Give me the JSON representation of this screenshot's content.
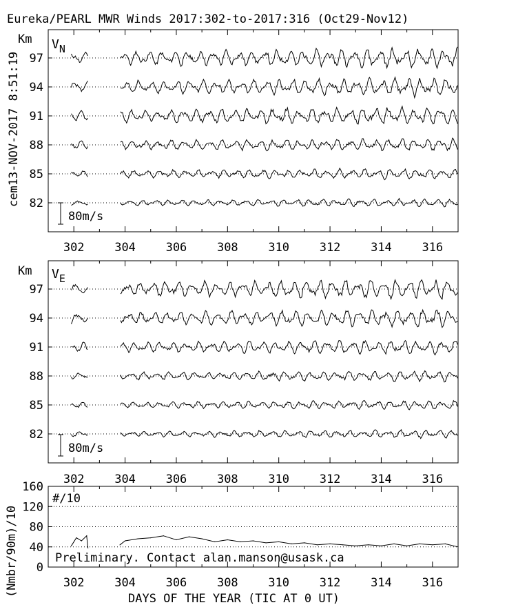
{
  "header": {
    "title": "Eureka/PEARL MWR Winds 2017:302-to-2017:316 (Oct29-Nov12)",
    "side_label": "cem13-NOV-2017  8:51:19"
  },
  "chart_data": [
    {
      "type": "line",
      "panel": "meridional",
      "component_label": "V",
      "component_subscript": "N",
      "unit_label": "Km",
      "scale_label": "80m/s",
      "xlim": [
        301,
        317
      ],
      "x_ticks": [
        "302",
        "304",
        "306",
        "308",
        "310",
        "312",
        "314",
        "316"
      ],
      "heights_km": [
        97,
        94,
        91,
        88,
        85,
        82
      ],
      "tick_labels": [
        "97",
        "94",
        "91",
        "88",
        "85",
        "82"
      ],
      "data_gap_days": [
        302.55,
        303.8
      ],
      "series_amplitude_ms": [
        55,
        50,
        50,
        35,
        30,
        22
      ],
      "grid": "dotted horizontal at each height",
      "legend": "none"
    },
    {
      "type": "line",
      "panel": "zonal",
      "component_label": "V",
      "component_subscript": "E",
      "unit_label": "Km",
      "scale_label": "80m/s",
      "xlim": [
        301,
        317
      ],
      "x_ticks": [
        "302",
        "304",
        "306",
        "308",
        "310",
        "312",
        "314",
        "316"
      ],
      "heights_km": [
        97,
        94,
        91,
        88,
        85,
        82
      ],
      "tick_labels": [
        "97",
        "94",
        "91",
        "88",
        "85",
        "82"
      ],
      "data_gap_days": [
        302.55,
        303.8
      ],
      "series_amplitude_ms": [
        55,
        50,
        40,
        30,
        25,
        22
      ],
      "grid": "dotted horizontal at each height",
      "legend": "none"
    },
    {
      "type": "line",
      "panel": "counts",
      "panel_label": "#/10",
      "ylabel": "(Nmbr/90m)/10",
      "xlabel": "DAYS OF THE YEAR (TIC AT 0 UT)",
      "xlim": [
        301,
        317
      ],
      "ylim": [
        0,
        160
      ],
      "x_ticks": [
        "302",
        "304",
        "306",
        "308",
        "310",
        "312",
        "314",
        "316"
      ],
      "y_ticks": [
        "0",
        "40",
        "80",
        "120",
        "160"
      ],
      "series": [
        {
          "x": [
            301.9,
            302.1,
            302.3,
            302.5,
            302.55,
            303.8,
            304.0,
            304.5,
            305.0,
            305.5,
            306.0,
            306.5,
            307.0,
            307.5,
            308.0,
            308.5,
            309.0,
            309.5,
            310.0,
            310.5,
            311.0,
            311.5,
            312.0,
            312.5,
            313.0,
            313.5,
            314.0,
            314.5,
            315.0,
            315.5,
            316.0,
            316.5,
            317.0
          ],
          "values": [
            42,
            58,
            52,
            62,
            38,
            44,
            52,
            56,
            58,
            62,
            54,
            60,
            56,
            50,
            54,
            50,
            52,
            48,
            50,
            46,
            48,
            44,
            46,
            44,
            42,
            44,
            42,
            46,
            42,
            46,
            44,
            46,
            40
          ]
        }
      ],
      "note": "Preliminary. Contact alan.manson@usask.ca",
      "grid": "dotted horizontal at 40, 80, 120",
      "legend": "none"
    }
  ]
}
